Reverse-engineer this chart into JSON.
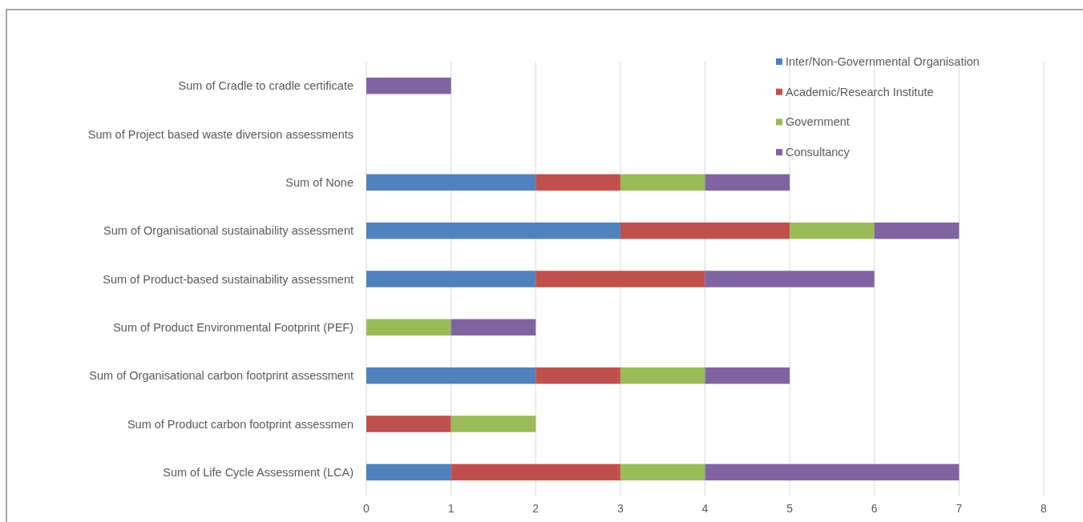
{
  "chart_data": {
    "type": "bar",
    "orientation": "horizontal",
    "stacked": true,
    "categories": [
      "Sum of Cradle to cradle certificate",
      "Sum of Project based waste diversion assessments",
      "Sum of None",
      "Sum of Organisational sustainability assessment",
      "Sum of Product-based sustainability assessment",
      "Sum of Product Environmental Footprint (PEF)",
      "Sum of Organisational carbon footprint assessment",
      "Sum of Product carbon footprint assessmen",
      "Sum of Life Cycle Assessment (LCA)"
    ],
    "series": [
      {
        "name": "Inter/Non-Governmental Organisation",
        "color": "#4f81bd",
        "values": [
          0,
          0,
          2,
          3,
          2,
          0,
          2,
          0,
          1
        ]
      },
      {
        "name": "Academic/Research Institute",
        "color": "#c0504d",
        "values": [
          0,
          0,
          1,
          2,
          2,
          0,
          1,
          1,
          2
        ]
      },
      {
        "name": "Government",
        "color": "#9bbb59",
        "values": [
          0,
          0,
          1,
          1,
          0,
          1,
          1,
          1,
          1
        ]
      },
      {
        "name": "Consultancy",
        "color": "#8064a2",
        "values": [
          1,
          0,
          1,
          1,
          2,
          1,
          1,
          0,
          3
        ]
      }
    ],
    "xlim": [
      0,
      8
    ],
    "xticks": [
      0,
      1,
      2,
      3,
      4,
      5,
      6,
      7,
      8
    ],
    "grid": "x",
    "legend": "top right"
  }
}
